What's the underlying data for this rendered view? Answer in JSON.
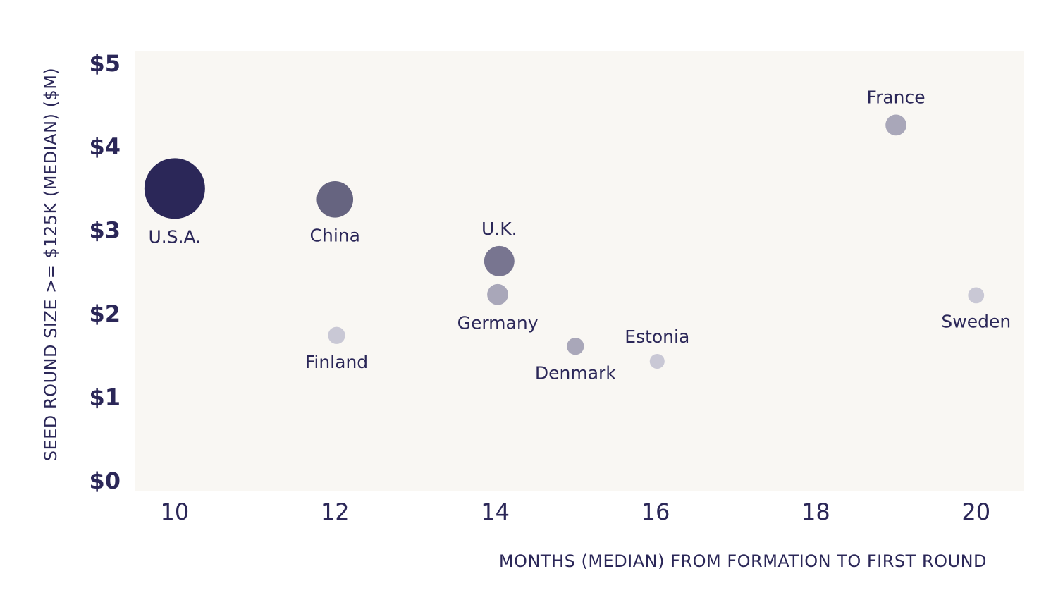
{
  "chart_data": {
    "type": "scatter",
    "xlabel": "MONTHS (MEDIAN) FROM FORMATION TO FIRST ROUND",
    "ylabel": "SEED ROUND SIZE >= $125K (MEDIAN) ($M)",
    "xlim": [
      9.5,
      20.6
    ],
    "ylim": [
      -0.12,
      5.15
    ],
    "x_ticks": [
      10,
      12,
      14,
      16,
      18,
      20
    ],
    "x_tick_labels": [
      "10",
      "12",
      "14",
      "16",
      "18",
      "20"
    ],
    "y_ticks": [
      0,
      1,
      2,
      3,
      4,
      5
    ],
    "y_tick_labels": [
      "$0",
      "$1",
      "$2",
      "$3",
      "$4",
      "$5"
    ],
    "grid": false,
    "plot_background": "#f9f7f3",
    "points": [
      {
        "label": "U.S.A.",
        "x": 10,
        "y": 3.5,
        "size": 1.0,
        "color": "#2b2758",
        "label_position": "below"
      },
      {
        "label": "China",
        "x": 12,
        "y": 3.37,
        "size": 0.36,
        "color": "#666480",
        "label_position": "below"
      },
      {
        "label": "U.K.",
        "x": 14.05,
        "y": 2.63,
        "size": 0.25,
        "color": "#787590",
        "label_position": "above"
      },
      {
        "label": "Germany",
        "x": 14.03,
        "y": 2.23,
        "size": 0.12,
        "color": "#a9a7b9",
        "label_position": "below"
      },
      {
        "label": "Finland",
        "x": 12.02,
        "y": 1.74,
        "size": 0.08,
        "color": "#c9c8d5",
        "label_position": "below"
      },
      {
        "label": "Denmark",
        "x": 15.0,
        "y": 1.61,
        "size": 0.08,
        "color": "#a9a7b9",
        "label_position": "below"
      },
      {
        "label": "Estonia",
        "x": 16.02,
        "y": 1.43,
        "size": 0.06,
        "color": "#c9c8d5",
        "label_position": "above"
      },
      {
        "label": "France",
        "x": 19.0,
        "y": 4.26,
        "size": 0.12,
        "color": "#a9a7b9",
        "label_position": "above"
      },
      {
        "label": "Sweden",
        "x": 20.0,
        "y": 2.22,
        "size": 0.07,
        "color": "#c9c8d5",
        "label_position": "below"
      }
    ]
  }
}
